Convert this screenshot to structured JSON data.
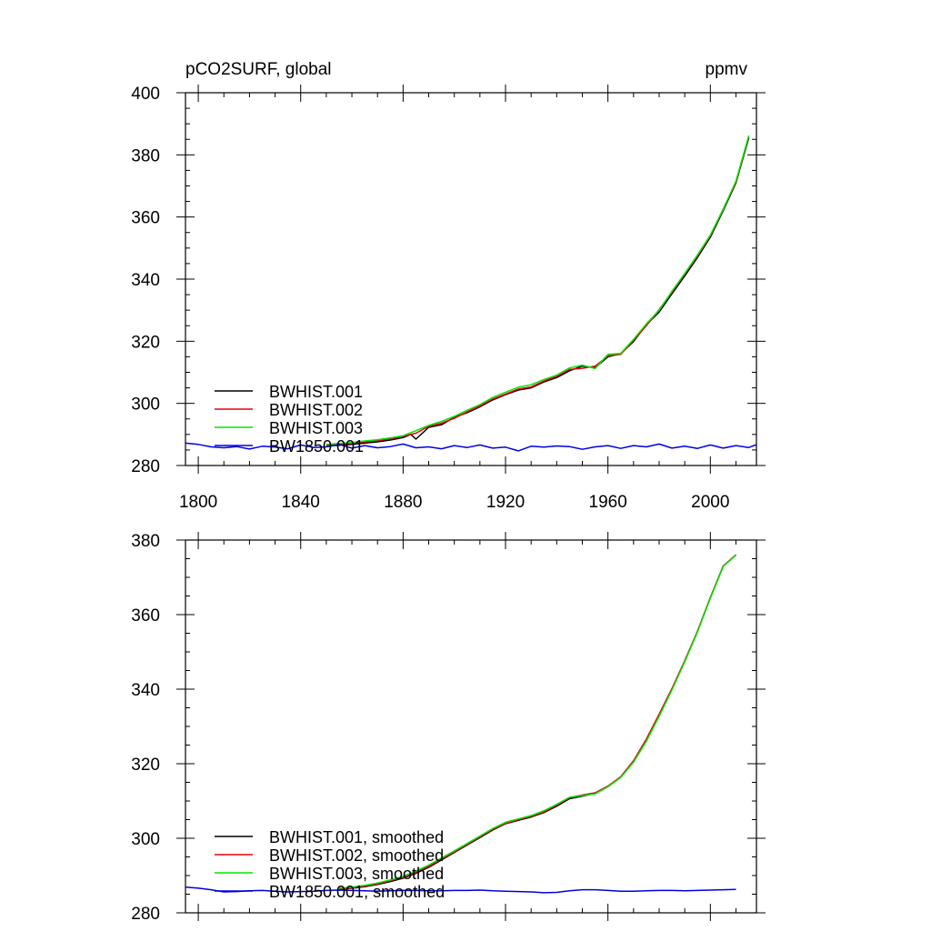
{
  "chart_data": [
    {
      "type": "line",
      "title": "pCO2SURF, global",
      "units": "ppmv",
      "xlim": [
        1795,
        2018
      ],
      "ylim": [
        280,
        400
      ],
      "xticks": [
        1800,
        1840,
        1880,
        1920,
        1960,
        2000
      ],
      "xtick_labels": [
        "1800",
        "1840",
        "1880",
        "1920",
        "1960",
        "2000"
      ],
      "yticks": [
        280,
        300,
        320,
        340,
        360,
        380,
        400
      ],
      "ytick_labels": [
        "280",
        "300",
        "320",
        "340",
        "360",
        "380",
        "400"
      ],
      "x_axis_labels_shown": true,
      "legend_position": "lower-left",
      "series": [
        {
          "name": "BWHIST.001",
          "color": "#000000",
          "x": [
            1850,
            1855,
            1860,
            1865,
            1870,
            1875,
            1880,
            1883,
            1885,
            1890,
            1895,
            1900,
            1905,
            1910,
            1915,
            1920,
            1925,
            1930,
            1935,
            1940,
            1945,
            1950,
            1955,
            1960,
            1965,
            1970,
            1975,
            1980,
            1985,
            1990,
            1995,
            2000,
            2005,
            2010,
            2015
          ],
          "y": [
            286.2,
            286.5,
            286.8,
            287.2,
            287.6,
            288.2,
            289.0,
            290.0,
            288.5,
            292.3,
            293.1,
            295.5,
            297.0,
            298.9,
            301.1,
            302.8,
            304.3,
            305.0,
            306.9,
            308.3,
            310.5,
            312.0,
            311.5,
            315.0,
            316.0,
            319.9,
            325.3,
            329.4,
            335.3,
            341.0,
            347.0,
            353.5,
            362.0,
            371.0,
            385.5
          ]
        },
        {
          "name": "BWHIST.002",
          "color": "#e8000b",
          "x": [
            1850,
            1855,
            1860,
            1865,
            1870,
            1875,
            1880,
            1885,
            1890,
            1895,
            1900,
            1905,
            1910,
            1915,
            1920,
            1925,
            1930,
            1935,
            1940,
            1945,
            1950,
            1955,
            1960,
            1965,
            1970,
            1975,
            1980,
            1985,
            1990,
            1995,
            2000,
            2005,
            2010,
            2015
          ],
          "y": [
            286.5,
            286.8,
            287.2,
            287.6,
            288.0,
            288.6,
            289.4,
            290.4,
            292.6,
            293.6,
            295.2,
            297.3,
            299.2,
            301.4,
            303.0,
            304.6,
            305.3,
            307.2,
            308.7,
            310.9,
            311.3,
            312.0,
            315.3,
            315.8,
            320.3,
            325.0,
            330.2,
            335.8,
            341.7,
            347.5,
            354.0,
            362.5,
            371.3,
            386.0
          ]
        },
        {
          "name": "BWHIST.003",
          "color": "#00e600",
          "x": [
            1850,
            1855,
            1860,
            1865,
            1870,
            1875,
            1880,
            1885,
            1890,
            1895,
            1900,
            1905,
            1910,
            1915,
            1920,
            1925,
            1930,
            1935,
            1940,
            1945,
            1950,
            1955,
            1960,
            1965,
            1970,
            1975,
            1980,
            1985,
            1990,
            1995,
            2000,
            2005,
            2010,
            2015
          ],
          "y": [
            286.8,
            287.1,
            287.4,
            287.9,
            288.3,
            288.9,
            289.6,
            291.2,
            292.9,
            294.2,
            295.8,
            297.8,
            299.6,
            301.9,
            303.6,
            305.2,
            306.0,
            307.7,
            309.1,
            311.4,
            312.3,
            311.2,
            315.8,
            316.1,
            320.6,
            325.6,
            330.0,
            336.1,
            341.8,
            347.8,
            354.2,
            362.4,
            371.6,
            386.2
          ]
        },
        {
          "name": "BW1850.001",
          "color": "#0000e0",
          "x": [
            1795,
            1800,
            1805,
            1810,
            1815,
            1820,
            1825,
            1830,
            1835,
            1840,
            1845,
            1850,
            1855,
            1860,
            1865,
            1870,
            1875,
            1880,
            1885,
            1890,
            1895,
            1900,
            1905,
            1910,
            1915,
            1920,
            1925,
            1930,
            1935,
            1940,
            1945,
            1950,
            1955,
            1960,
            1965,
            1970,
            1975,
            1980,
            1985,
            1990,
            1995,
            2000,
            2005,
            2010,
            2015,
            2018
          ],
          "y": [
            287.2,
            286.8,
            286.0,
            285.7,
            286.1,
            285.3,
            286.2,
            285.9,
            285.4,
            286.6,
            285.8,
            286.0,
            286.8,
            285.6,
            286.4,
            285.7,
            286.1,
            286.9,
            285.7,
            286.0,
            285.4,
            286.4,
            285.8,
            286.6,
            285.6,
            285.9,
            284.7,
            286.2,
            285.9,
            286.3,
            286.1,
            285.2,
            286.0,
            286.4,
            285.5,
            286.4,
            286.0,
            286.9,
            285.6,
            286.2,
            285.5,
            286.6,
            285.6,
            286.4,
            285.8,
            286.7
          ]
        }
      ],
      "legend": [
        "BWHIST.001",
        "BWHIST.002",
        "BWHIST.003",
        "BW1850.001"
      ]
    },
    {
      "type": "line",
      "title": "",
      "units": "",
      "xlim": [
        1795,
        2018
      ],
      "ylim": [
        280,
        380
      ],
      "xticks": [
        1800,
        1840,
        1880,
        1920,
        1960,
        2000
      ],
      "xtick_labels": [],
      "yticks": [
        280,
        300,
        320,
        340,
        360,
        380
      ],
      "ytick_labels": [
        "280",
        "300",
        "320",
        "340",
        "360",
        "380"
      ],
      "x_axis_labels_shown": false,
      "legend_position": "lower-left",
      "series": [
        {
          "name": "BWHIST.001, smoothed",
          "color": "#000000",
          "x": [
            1855,
            1860,
            1865,
            1870,
            1875,
            1880,
            1885,
            1890,
            1895,
            1900,
            1905,
            1910,
            1915,
            1920,
            1925,
            1930,
            1935,
            1940,
            1945,
            1950,
            1955,
            1960,
            1965,
            1970,
            1975,
            1980,
            1985,
            1990,
            1995,
            2000,
            2005,
            2010
          ],
          "y": [
            286.3,
            286.6,
            287.0,
            287.6,
            288.4,
            289.3,
            290.6,
            292.2,
            294.2,
            296.2,
            298.2,
            300.2,
            302.2,
            303.9,
            304.8,
            305.7,
            306.9,
            308.6,
            310.6,
            311.3,
            312.0,
            313.9,
            316.4,
            320.6,
            326.4,
            333.0,
            340.0,
            347.5,
            355.5,
            364.5,
            373.0,
            376.0
          ]
        },
        {
          "name": "BWHIST.002, smoothed",
          "color": "#e8000b",
          "x": [
            1855,
            1860,
            1865,
            1870,
            1875,
            1880,
            1885,
            1890,
            1895,
            1900,
            1905,
            1910,
            1915,
            1920,
            1925,
            1930,
            1935,
            1940,
            1945,
            1950,
            1955,
            1960,
            1965,
            1970,
            1975,
            1980,
            1985,
            1990,
            1995,
            2000,
            2005,
            2010
          ],
          "y": [
            286.4,
            286.7,
            287.2,
            287.8,
            288.6,
            289.5,
            290.9,
            292.5,
            294.4,
            296.4,
            298.4,
            300.4,
            302.4,
            304.0,
            305.0,
            305.9,
            307.1,
            308.9,
            310.9,
            311.6,
            312.2,
            314.0,
            316.5,
            320.8,
            326.6,
            333.3,
            340.2,
            347.6,
            355.6,
            364.6,
            373.0,
            376.1
          ]
        },
        {
          "name": "BWHIST.003, smoothed",
          "color": "#00e600",
          "x": [
            1855,
            1860,
            1865,
            1870,
            1875,
            1880,
            1885,
            1890,
            1895,
            1900,
            1905,
            1910,
            1915,
            1920,
            1925,
            1930,
            1935,
            1940,
            1945,
            1950,
            1955,
            1960,
            1965,
            1970,
            1975,
            1980,
            1985,
            1990,
            1995,
            2000,
            2005,
            2010
          ],
          "y": [
            286.6,
            286.9,
            287.4,
            288.0,
            288.8,
            289.8,
            291.2,
            292.8,
            294.7,
            296.6,
            298.6,
            300.6,
            302.6,
            304.3,
            305.2,
            306.1,
            307.4,
            309.1,
            311.0,
            311.5,
            311.9,
            313.8,
            316.3,
            320.4,
            326.0,
            332.7,
            339.8,
            347.3,
            355.4,
            364.4,
            372.9,
            376.0
          ]
        },
        {
          "name": "BW1850.001, smoothed",
          "color": "#0000e0",
          "x": [
            1795,
            1800,
            1805,
            1810,
            1815,
            1820,
            1825,
            1830,
            1835,
            1840,
            1845,
            1850,
            1855,
            1860,
            1865,
            1870,
            1875,
            1880,
            1885,
            1890,
            1895,
            1900,
            1905,
            1910,
            1915,
            1920,
            1925,
            1930,
            1935,
            1940,
            1945,
            1950,
            1955,
            1960,
            1965,
            1970,
            1975,
            1980,
            1985,
            1990,
            1995,
            2000,
            2005,
            2010
          ],
          "y": [
            286.9,
            286.6,
            286.2,
            285.6,
            285.7,
            285.9,
            286.0,
            285.8,
            285.6,
            285.7,
            285.8,
            286.0,
            286.1,
            286.0,
            285.9,
            285.8,
            285.9,
            286.0,
            286.0,
            285.9,
            285.9,
            286.0,
            286.0,
            286.1,
            285.9,
            285.8,
            285.7,
            285.6,
            285.4,
            285.5,
            285.9,
            286.2,
            286.2,
            286.0,
            285.8,
            285.8,
            285.9,
            286.0,
            286.0,
            285.9,
            286.0,
            286.1,
            286.2,
            286.3
          ]
        }
      ],
      "legend": [
        "BWHIST.001, smoothed",
        "BWHIST.002, smoothed",
        "BWHIST.003, smoothed",
        "BW1850.001, smoothed"
      ]
    }
  ]
}
